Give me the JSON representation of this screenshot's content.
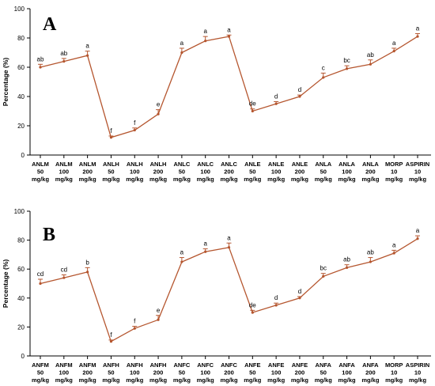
{
  "chart_data": [
    {
      "type": "line",
      "panel_label": "A",
      "ylabel": "Percentage (%)",
      "ylim": [
        0,
        100
      ],
      "yticks": [
        "0",
        "20",
        "40",
        "60",
        "80",
        "100"
      ],
      "categories": [
        [
          "ANLM",
          "50",
          "mg/kg"
        ],
        [
          "ANLM",
          "100",
          "mg/kg"
        ],
        [
          "ANLM",
          "200",
          "mg/kg"
        ],
        [
          "ANLH",
          "50",
          "mg/kg"
        ],
        [
          "ANLH",
          "100",
          "mg/kg"
        ],
        [
          "ANLH",
          "200",
          "mg/kg"
        ],
        [
          "ANLC",
          "50",
          "mg/kg"
        ],
        [
          "ANLC",
          "100",
          "mg/kg"
        ],
        [
          "ANLC",
          "200",
          "mg/kg"
        ],
        [
          "ANLE",
          "50",
          "mg/kg"
        ],
        [
          "ANLE",
          "100",
          "mg/kg"
        ],
        [
          "ANLE",
          "200",
          "mg/kg"
        ],
        [
          "ANLA",
          "50",
          "mg/kg"
        ],
        [
          "ANLA",
          "100",
          "mg/kg"
        ],
        [
          "ANLA",
          "200",
          "mg/kg"
        ],
        [
          "MORP",
          "10",
          "mg/kg"
        ],
        [
          "ASPIRIN",
          "10",
          "mg/kg"
        ]
      ],
      "values": [
        60,
        64,
        68,
        12,
        17,
        28,
        70,
        78,
        81,
        30,
        35,
        40,
        53,
        59,
        62,
        71,
        81
      ],
      "errors": [
        2,
        2,
        3,
        1,
        1.5,
        3,
        3,
        3,
        1,
        1.5,
        1.5,
        1,
        3,
        2,
        3,
        2,
        2
      ],
      "labels": [
        "ab",
        "ab",
        "a",
        "f",
        "f",
        "e",
        "a",
        "a",
        "a",
        "de",
        "d",
        "d",
        "c",
        "bc",
        "ab",
        "a",
        "a"
      ]
    },
    {
      "type": "line",
      "panel_label": "B",
      "ylabel": "Percentage (%)",
      "ylim": [
        0,
        100
      ],
      "yticks": [
        "0",
        "20",
        "40",
        "60",
        "80",
        "100"
      ],
      "categories": [
        [
          "ANFM",
          "50",
          "mg/kg"
        ],
        [
          "ANFM",
          "100",
          "mg/kg"
        ],
        [
          "ANFM",
          "200",
          "mg/kg"
        ],
        [
          "ANFH",
          "50",
          "mg/kg"
        ],
        [
          "ANFH",
          "100",
          "mg/kg"
        ],
        [
          "ANFH",
          "200",
          "mg/kg"
        ],
        [
          "ANFC",
          "50",
          "mg/kg"
        ],
        [
          "ANFC",
          "100",
          "mg/kg"
        ],
        [
          "ANFC",
          "200",
          "mg/kg"
        ],
        [
          "ANFE",
          "50",
          "mg/kg"
        ],
        [
          "ANFE",
          "100",
          "mg/kg"
        ],
        [
          "ANFE",
          "200",
          "mg/kg"
        ],
        [
          "ANFA",
          "50",
          "mg/kg"
        ],
        [
          "ANFA",
          "100",
          "mg/kg"
        ],
        [
          "ANFA",
          "200",
          "mg/kg"
        ],
        [
          "MORP",
          "10",
          "mg/kg"
        ],
        [
          "ASPIRIN",
          "10",
          "mg/kg"
        ]
      ],
      "values": [
        50,
        54,
        58,
        10,
        19,
        25,
        65,
        72,
        75,
        30,
        35,
        40,
        55,
        61,
        65,
        71,
        81
      ],
      "errors": [
        3,
        2,
        3,
        1,
        1.5,
        3,
        3,
        2,
        3,
        1.5,
        1.5,
        1,
        2,
        2,
        3,
        2,
        2
      ],
      "labels": [
        "cd",
        "cd",
        "b",
        "f",
        "f",
        "e",
        "a",
        "a",
        "a",
        "de",
        "d",
        "d",
        "bc",
        "ab",
        "ab",
        "a",
        "a"
      ]
    }
  ],
  "colors": {
    "series": "#b5562f",
    "axis": "#000000"
  }
}
